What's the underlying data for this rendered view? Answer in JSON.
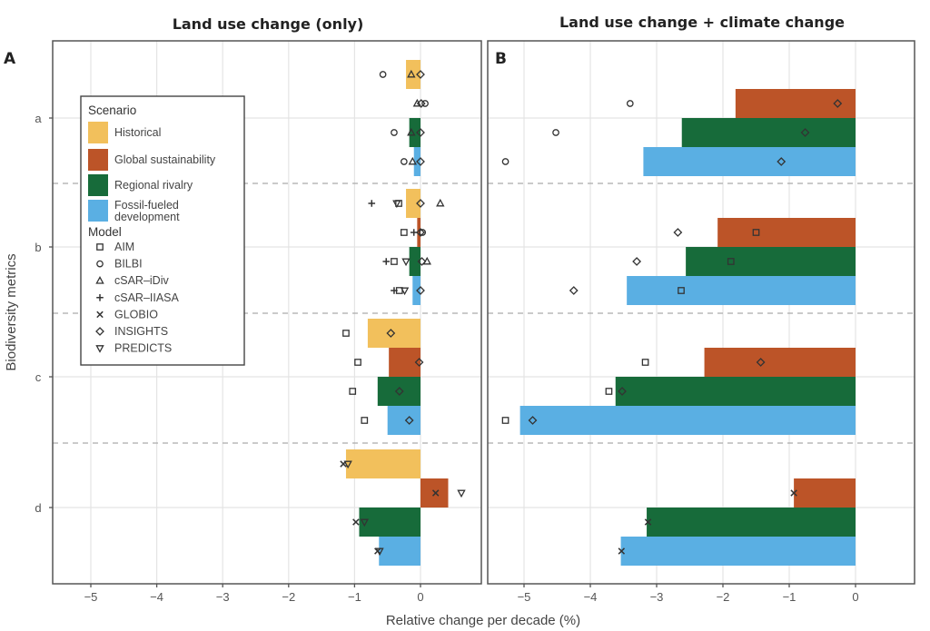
{
  "chart_data": {
    "type": "bar",
    "orientation": "horizontal",
    "xlabel": "Relative change per decade (%)",
    "ylabel": "Biodiversity metrics",
    "categories": [
      "a",
      "b",
      "c",
      "d"
    ],
    "xlim": [
      -5.5,
      0.9
    ],
    "xticks": [
      -5,
      -4,
      -3,
      -2,
      -1,
      0
    ],
    "xtick_labels": [
      "−5",
      "−4",
      "−3",
      "−2",
      "−1",
      "0"
    ],
    "grid": true,
    "legend_position": "top-left (inside panel A)",
    "legend": {
      "scenario_title": "Scenario",
      "scenarios": [
        {
          "key": "historical",
          "label": "Historical",
          "color": "#F2C05C"
        },
        {
          "key": "global",
          "label": "Global sustainability",
          "color": "#BC5428"
        },
        {
          "key": "regional",
          "label": "Regional rivalry",
          "color": "#176B3A"
        },
        {
          "key": "fossil",
          "label": "Fossil-fueled development",
          "label_lines": [
            "Fossil-fueled",
            "development"
          ],
          "color": "#5AAFE3"
        }
      ],
      "model_title": "Model",
      "models": [
        {
          "key": "AIM",
          "label": "AIM",
          "symbol": "square"
        },
        {
          "key": "BILBI",
          "label": "BILBI",
          "symbol": "circle"
        },
        {
          "key": "cSAR-iDiv",
          "label": "cSAR–iDiv",
          "symbol": "triangle-up"
        },
        {
          "key": "cSAR-IIASA",
          "label": "cSAR–IIASA",
          "symbol": "plus"
        },
        {
          "key": "GLOBIO",
          "label": "GLOBIO",
          "symbol": "cross"
        },
        {
          "key": "INSIGHTS",
          "label": "INSIGHTS",
          "symbol": "diamond"
        },
        {
          "key": "PREDICTS",
          "label": "PREDICTS",
          "symbol": "triangle-down"
        }
      ]
    },
    "panels": [
      {
        "id": "A",
        "letter": "A",
        "title": "Land use change (only)",
        "bars": {
          "a": {
            "historical": -0.22,
            "global": null,
            "regional": -0.17,
            "fossil": -0.1
          },
          "b": {
            "historical": -0.22,
            "global": -0.05,
            "regional": -0.17,
            "fossil": -0.12
          },
          "c": {
            "historical": -0.8,
            "global": -0.48,
            "regional": -0.65,
            "fossil": -0.5
          },
          "d": {
            "historical": -1.13,
            "global": 0.42,
            "regional": -0.93,
            "fossil": -0.63
          }
        },
        "points": [
          {
            "metric": "a",
            "scenario": "historical",
            "model": "BILBI",
            "value": -0.57
          },
          {
            "metric": "a",
            "scenario": "historical",
            "model": "cSAR-iDiv",
            "value": -0.14
          },
          {
            "metric": "a",
            "scenario": "historical",
            "model": "INSIGHTS",
            "value": 0.0
          },
          {
            "metric": "a",
            "scenario": "global",
            "model": "cSAR-iDiv",
            "value": -0.05
          },
          {
            "metric": "a",
            "scenario": "global",
            "model": "INSIGHTS",
            "value": 0.01
          },
          {
            "metric": "a",
            "scenario": "global",
            "model": "BILBI",
            "value": 0.07
          },
          {
            "metric": "a",
            "scenario": "regional",
            "model": "BILBI",
            "value": -0.4
          },
          {
            "metric": "a",
            "scenario": "regional",
            "model": "cSAR-iDiv",
            "value": -0.14
          },
          {
            "metric": "a",
            "scenario": "regional",
            "model": "INSIGHTS",
            "value": 0.0
          },
          {
            "metric": "a",
            "scenario": "fossil",
            "model": "BILBI",
            "value": -0.25
          },
          {
            "metric": "a",
            "scenario": "fossil",
            "model": "cSAR-iDiv",
            "value": -0.12
          },
          {
            "metric": "a",
            "scenario": "fossil",
            "model": "INSIGHTS",
            "value": 0.0
          },
          {
            "metric": "b",
            "scenario": "historical",
            "model": "cSAR-IIASA",
            "value": -0.74
          },
          {
            "metric": "b",
            "scenario": "historical",
            "model": "PREDICTS",
            "value": -0.36
          },
          {
            "metric": "b",
            "scenario": "historical",
            "model": "AIM",
            "value": -0.33
          },
          {
            "metric": "b",
            "scenario": "historical",
            "model": "INSIGHTS",
            "value": 0.0
          },
          {
            "metric": "b",
            "scenario": "historical",
            "model": "cSAR-iDiv",
            "value": 0.3
          },
          {
            "metric": "b",
            "scenario": "global",
            "model": "AIM",
            "value": -0.25
          },
          {
            "metric": "b",
            "scenario": "global",
            "model": "cSAR-IIASA",
            "value": -0.1
          },
          {
            "metric": "b",
            "scenario": "global",
            "model": "INSIGHTS",
            "value": 0.0
          },
          {
            "metric": "b",
            "scenario": "global",
            "model": "BILBI",
            "value": 0.03
          },
          {
            "metric": "b",
            "scenario": "regional",
            "model": "cSAR-IIASA",
            "value": -0.52
          },
          {
            "metric": "b",
            "scenario": "regional",
            "model": "AIM",
            "value": -0.4
          },
          {
            "metric": "b",
            "scenario": "regional",
            "model": "PREDICTS",
            "value": -0.22
          },
          {
            "metric": "b",
            "scenario": "regional",
            "model": "INSIGHTS",
            "value": 0.02
          },
          {
            "metric": "b",
            "scenario": "regional",
            "model": "cSAR-iDiv",
            "value": 0.1
          },
          {
            "metric": "b",
            "scenario": "fossil",
            "model": "cSAR-IIASA",
            "value": -0.4
          },
          {
            "metric": "b",
            "scenario": "fossil",
            "model": "AIM",
            "value": -0.32
          },
          {
            "metric": "b",
            "scenario": "fossil",
            "model": "PREDICTS",
            "value": -0.24
          },
          {
            "metric": "b",
            "scenario": "fossil",
            "model": "INSIGHTS",
            "value": 0.0
          },
          {
            "metric": "c",
            "scenario": "historical",
            "model": "AIM",
            "value": -1.13
          },
          {
            "metric": "c",
            "scenario": "historical",
            "model": "INSIGHTS",
            "value": -0.45
          },
          {
            "metric": "c",
            "scenario": "global",
            "model": "AIM",
            "value": -0.95
          },
          {
            "metric": "c",
            "scenario": "global",
            "model": "INSIGHTS",
            "value": -0.02
          },
          {
            "metric": "c",
            "scenario": "regional",
            "model": "AIM",
            "value": -1.03
          },
          {
            "metric": "c",
            "scenario": "regional",
            "model": "INSIGHTS",
            "value": -0.32
          },
          {
            "metric": "c",
            "scenario": "fossil",
            "model": "AIM",
            "value": -0.85
          },
          {
            "metric": "c",
            "scenario": "fossil",
            "model": "INSIGHTS",
            "value": -0.17
          },
          {
            "metric": "d",
            "scenario": "historical",
            "model": "GLOBIO",
            "value": -1.17
          },
          {
            "metric": "d",
            "scenario": "historical",
            "model": "PREDICTS",
            "value": -1.1
          },
          {
            "metric": "d",
            "scenario": "global",
            "model": "GLOBIO",
            "value": 0.23
          },
          {
            "metric": "d",
            "scenario": "global",
            "model": "PREDICTS",
            "value": 0.62
          },
          {
            "metric": "d",
            "scenario": "regional",
            "model": "GLOBIO",
            "value": -0.98
          },
          {
            "metric": "d",
            "scenario": "regional",
            "model": "PREDICTS",
            "value": -0.85
          },
          {
            "metric": "d",
            "scenario": "fossil",
            "model": "GLOBIO",
            "value": -0.65
          },
          {
            "metric": "d",
            "scenario": "fossil",
            "model": "PREDICTS",
            "value": -0.62
          }
        ]
      },
      {
        "id": "B",
        "letter": "B",
        "title": "Land use change + climate change",
        "bars": {
          "a": {
            "historical": null,
            "global": -1.81,
            "regional": -2.62,
            "fossil": -3.2
          },
          "b": {
            "historical": null,
            "global": -2.08,
            "regional": -2.56,
            "fossil": -3.45
          },
          "c": {
            "historical": null,
            "global": -2.28,
            "regional": -3.62,
            "fossil": -5.06
          },
          "d": {
            "historical": null,
            "global": -0.93,
            "regional": -3.15,
            "fossil": -3.54
          }
        },
        "points": [
          {
            "metric": "a",
            "scenario": "global",
            "model": "BILBI",
            "value": -3.4
          },
          {
            "metric": "a",
            "scenario": "global",
            "model": "INSIGHTS",
            "value": -0.27
          },
          {
            "metric": "a",
            "scenario": "regional",
            "model": "BILBI",
            "value": -4.52
          },
          {
            "metric": "a",
            "scenario": "regional",
            "model": "INSIGHTS",
            "value": -0.76
          },
          {
            "metric": "a",
            "scenario": "fossil",
            "model": "BILBI",
            "value": -5.28
          },
          {
            "metric": "a",
            "scenario": "fossil",
            "model": "INSIGHTS",
            "value": -1.12
          },
          {
            "metric": "b",
            "scenario": "global",
            "model": "INSIGHTS",
            "value": -2.68
          },
          {
            "metric": "b",
            "scenario": "global",
            "model": "AIM",
            "value": -1.5
          },
          {
            "metric": "b",
            "scenario": "regional",
            "model": "INSIGHTS",
            "value": -3.3
          },
          {
            "metric": "b",
            "scenario": "regional",
            "model": "AIM",
            "value": -1.88
          },
          {
            "metric": "b",
            "scenario": "fossil",
            "model": "INSIGHTS",
            "value": -4.25
          },
          {
            "metric": "b",
            "scenario": "fossil",
            "model": "AIM",
            "value": -2.63
          },
          {
            "metric": "c",
            "scenario": "global",
            "model": "AIM",
            "value": -3.17
          },
          {
            "metric": "c",
            "scenario": "global",
            "model": "INSIGHTS",
            "value": -1.43
          },
          {
            "metric": "c",
            "scenario": "regional",
            "model": "AIM",
            "value": -3.72
          },
          {
            "metric": "c",
            "scenario": "regional",
            "model": "INSIGHTS",
            "value": -3.52
          },
          {
            "metric": "c",
            "scenario": "fossil",
            "model": "AIM",
            "value": -5.28
          },
          {
            "metric": "c",
            "scenario": "fossil",
            "model": "INSIGHTS",
            "value": -4.87
          },
          {
            "metric": "d",
            "scenario": "global",
            "model": "GLOBIO",
            "value": -0.93
          },
          {
            "metric": "d",
            "scenario": "regional",
            "model": "GLOBIO",
            "value": -3.13
          },
          {
            "metric": "d",
            "scenario": "fossil",
            "model": "GLOBIO",
            "value": -3.53
          }
        ]
      }
    ]
  }
}
